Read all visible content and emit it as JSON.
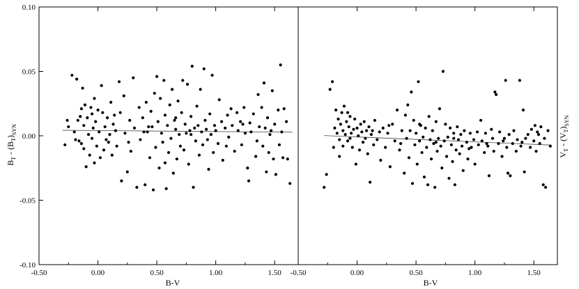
{
  "chart_data": [
    {
      "type": "scatter",
      "xlabel": "B-V",
      "ylabel": {
        "main": "B",
        "sub1": "T",
        "mid": " - (B",
        "sub2": "T",
        "close": ")",
        "sub3": "SYN"
      },
      "xlim": [
        -0.5,
        1.7
      ],
      "ylim": [
        -0.1,
        0.1
      ],
      "x_ticks": [
        "-0.50",
        "0.00",
        "0.50",
        "1.00",
        "1.50"
      ],
      "y_ticks": [
        "0.10",
        "0.05",
        "0.00",
        "-0.05",
        "-0.10"
      ],
      "trend": {
        "x": [
          -0.3,
          1.65
        ],
        "y": [
          0.0043,
          0.0028
        ]
      },
      "points": [
        [
          -0.28,
          -0.007
        ],
        [
          -0.25,
          0.007
        ],
        [
          -0.22,
          0.047
        ],
        [
          -0.2,
          0.003
        ],
        [
          -0.18,
          0.044
        ],
        [
          -0.17,
          0.012
        ],
        [
          -0.16,
          -0.004
        ],
        [
          -0.15,
          0.015
        ],
        [
          -0.14,
          0.021
        ],
        [
          -0.13,
          0.037
        ],
        [
          -0.12,
          0.008
        ],
        [
          -0.12,
          -0.01
        ],
        [
          -0.11,
          0.024
        ],
        [
          -0.1,
          -0.024
        ],
        [
          -0.09,
          0.014
        ],
        [
          -0.08,
          0.001
        ],
        [
          -0.07,
          -0.015
        ],
        [
          -0.06,
          0.022
        ],
        [
          -0.05,
          0.017
        ],
        [
          -0.05,
          -0.002
        ],
        [
          -0.04,
          0.006
        ],
        [
          -0.03,
          0.029
        ],
        [
          -0.03,
          -0.021
        ],
        [
          -0.02,
          0.011
        ],
        [
          -0.01,
          -0.008
        ],
        [
          0.0,
          0.02
        ],
        [
          0.01,
          0.003
        ],
        [
          0.02,
          -0.017
        ],
        [
          0.03,
          0.039
        ],
        [
          0.04,
          0.018
        ],
        [
          0.05,
          -0.011
        ],
        [
          0.06,
          0.007
        ],
        [
          0.07,
          -0.003
        ],
        [
          0.08,
          0.014
        ],
        [
          0.09,
          -0.005
        ],
        [
          0.1,
          0.001
        ],
        [
          0.11,
          0.026
        ],
        [
          0.12,
          -0.015
        ],
        [
          0.13,
          0.009
        ],
        [
          0.15,
          0.004
        ],
        [
          0.16,
          -0.008
        ],
        [
          0.18,
          0.042
        ],
        [
          0.19,
          0.018
        ],
        [
          0.2,
          -0.035
        ],
        [
          0.22,
          0.031
        ],
        [
          0.23,
          0.002
        ],
        [
          0.25,
          -0.028
        ],
        [
          0.27,
          0.012
        ],
        [
          0.28,
          -0.012
        ],
        [
          0.3,
          0.045
        ],
        [
          0.31,
          0.006
        ],
        [
          0.33,
          -0.04
        ],
        [
          0.35,
          0.022
        ],
        [
          0.36,
          -0.003
        ],
        [
          0.38,
          0.014
        ],
        [
          0.4,
          -0.038
        ],
        [
          0.41,
          0.026
        ],
        [
          0.42,
          0.003
        ],
        [
          0.44,
          -0.017
        ],
        [
          0.45,
          0.019
        ],
        [
          0.46,
          0.007
        ],
        [
          0.47,
          -0.042
        ],
        [
          0.48,
          0.033
        ],
        [
          0.49,
          -0.009
        ],
        [
          0.5,
          0.046
        ],
        [
          0.51,
          0.011
        ],
        [
          0.52,
          -0.025
        ],
        [
          0.53,
          0.029
        ],
        [
          0.54,
          0.002
        ],
        [
          0.55,
          -0.005
        ],
        [
          0.56,
          0.043
        ],
        [
          0.57,
          0.016
        ],
        [
          0.58,
          -0.041
        ],
        [
          0.59,
          0.008
        ],
        [
          0.6,
          -0.013
        ],
        [
          0.61,
          0.024
        ],
        [
          0.62,
          -0.002
        ],
        [
          0.63,
          0.036
        ],
        [
          0.64,
          -0.029
        ],
        [
          0.65,
          0.012
        ],
        [
          0.66,
          0.005
        ],
        [
          0.67,
          -0.018
        ],
        [
          0.68,
          0.027
        ],
        [
          0.69,
          0.001
        ],
        [
          0.7,
          -0.008
        ],
        [
          0.71,
          0.018
        ],
        [
          0.72,
          0.043
        ],
        [
          0.73,
          -0.011
        ],
        [
          0.74,
          0.009
        ],
        [
          0.75,
          0.002
        ],
        [
          0.76,
          0.04
        ],
        [
          0.77,
          -0.022
        ],
        [
          0.78,
          0.004
        ],
        [
          0.79,
          0.015
        ],
        [
          0.8,
          0.054
        ],
        [
          0.81,
          -0.04
        ],
        [
          0.82,
          0.006
        ],
        [
          0.83,
          -0.004
        ],
        [
          0.84,
          0.023
        ],
        [
          0.85,
          0.008
        ],
        [
          0.86,
          -0.015
        ],
        [
          0.87,
          0.036
        ],
        [
          0.88,
          0.003
        ],
        [
          0.89,
          -0.007
        ],
        [
          0.9,
          0.052
        ],
        [
          0.91,
          0.012
        ],
        [
          0.92,
          0.005
        ],
        [
          0.94,
          -0.026
        ],
        [
          0.95,
          0.017
        ],
        [
          0.96,
          0.001
        ],
        [
          0.97,
          0.047
        ],
        [
          0.98,
          -0.013
        ],
        [
          0.99,
          0.008
        ],
        [
          1.0,
          0.004
        ],
        [
          1.02,
          -0.006
        ],
        [
          1.03,
          0.028
        ],
        [
          1.05,
          0.011
        ],
        [
          1.06,
          -0.019
        ],
        [
          1.08,
          0.006
        ],
        [
          1.1,
          0.016
        ],
        [
          1.11,
          -0.001
        ],
        [
          1.13,
          0.021
        ],
        [
          1.14,
          0.008
        ],
        [
          1.16,
          -0.012
        ],
        [
          1.18,
          0.018
        ],
        [
          1.19,
          0.004
        ],
        [
          1.21,
          0.011
        ],
        [
          1.22,
          -0.007
        ],
        [
          1.24,
          0.022
        ],
        [
          1.25,
          0.002
        ],
        [
          1.27,
          -0.025
        ],
        [
          1.28,
          -0.035
        ],
        [
          1.29,
          0.01
        ],
        [
          1.3,
          0.003
        ],
        [
          1.32,
          0.017
        ],
        [
          1.34,
          -0.016
        ],
        [
          1.36,
          0.032
        ],
        [
          1.37,
          0.007
        ],
        [
          1.39,
          0.022
        ],
        [
          1.4,
          -0.008
        ],
        [
          1.41,
          0.041
        ],
        [
          1.42,
          0.006
        ],
        [
          1.43,
          -0.028
        ],
        [
          1.44,
          0.014
        ],
        [
          1.45,
          -0.013
        ],
        [
          1.46,
          0.001
        ],
        [
          1.48,
          0.035
        ],
        [
          1.49,
          -0.018
        ],
        [
          1.5,
          0.009
        ],
        [
          1.51,
          -0.03
        ],
        [
          1.53,
          0.02
        ],
        [
          1.54,
          -0.007
        ],
        [
          1.55,
          0.055
        ],
        [
          1.56,
          0.003
        ],
        [
          1.57,
          -0.017
        ],
        [
          1.58,
          0.021
        ],
        [
          1.6,
          0.011
        ],
        [
          1.61,
          -0.018
        ],
        [
          1.63,
          -0.037
        ],
        [
          -0.26,
          0.012
        ],
        [
          -0.19,
          -0.003
        ],
        [
          -0.14,
          -0.006
        ],
        [
          0.14,
          0.016
        ],
        [
          0.26,
          -0.005
        ],
        [
          0.39,
          0.003
        ],
        [
          0.43,
          0.007
        ],
        [
          0.57,
          -0.021
        ],
        [
          0.66,
          0.014
        ],
        [
          0.79,
          0.001
        ],
        [
          0.93,
          -0.003
        ],
        [
          1.09,
          -0.008
        ],
        [
          1.23,
          0.009
        ],
        [
          1.35,
          -0.004
        ],
        [
          1.47,
          0.004
        ]
      ]
    },
    {
      "type": "scatter",
      "xlabel": "B-V",
      "ylabel": {
        "main": "V",
        "sub1": "T",
        "mid": " - (V",
        "sub2": "T",
        "close": ")",
        "sub3": "SYN"
      },
      "xlim": [
        -0.5,
        1.7
      ],
      "ylim": [
        -0.1,
        0.1
      ],
      "x_ticks": [
        "-0.50",
        "0.00",
        "0.50",
        "1.00",
        "1.50"
      ],
      "trend": {
        "x": [
          -0.28,
          1.65
        ],
        "y": [
          0.0002,
          -0.0072
        ]
      },
      "points": [
        [
          -0.28,
          -0.04
        ],
        [
          -0.26,
          -0.03
        ],
        [
          -0.23,
          0.036
        ],
        [
          -0.21,
          0.042
        ],
        [
          -0.2,
          -0.009
        ],
        [
          -0.19,
          0.006
        ],
        [
          -0.17,
          0.002
        ],
        [
          -0.16,
          0.013
        ],
        [
          -0.15,
          -0.003
        ],
        [
          -0.14,
          0.009
        ],
        [
          -0.13,
          0.018
        ],
        [
          -0.12,
          0.004
        ],
        [
          -0.12,
          -0.008
        ],
        [
          -0.11,
          0.023
        ],
        [
          -0.1,
          0.001
        ],
        [
          -0.09,
          0.011
        ],
        [
          -0.08,
          0.018
        ],
        [
          -0.08,
          -0.004
        ],
        [
          -0.07,
          0.007
        ],
        [
          -0.06,
          0.015
        ],
        [
          -0.05,
          0.002
        ],
        [
          -0.04,
          -0.009
        ],
        [
          -0.03,
          0.005
        ],
        [
          -0.02,
          0.013
        ],
        [
          -0.01,
          -0.022
        ],
        [
          0.0,
          0.006
        ],
        [
          0.01,
          0.0
        ],
        [
          0.02,
          -0.011
        ],
        [
          0.03,
          0.009
        ],
        [
          0.04,
          0.003
        ],
        [
          0.05,
          -0.005
        ],
        [
          0.06,
          0.011
        ],
        [
          0.07,
          -0.002
        ],
        [
          0.08,
          0.004
        ],
        [
          0.09,
          -0.014
        ],
        [
          0.1,
          0.007
        ],
        [
          0.11,
          -0.036
        ],
        [
          0.12,
          0.001
        ],
        [
          0.14,
          -0.007
        ],
        [
          0.15,
          0.012
        ],
        [
          0.17,
          -0.003
        ],
        [
          0.19,
          0.003
        ],
        [
          0.2,
          -0.019
        ],
        [
          0.22,
          0.006
        ],
        [
          0.24,
          -0.009
        ],
        [
          0.26,
          0.002
        ],
        [
          0.28,
          -0.024
        ],
        [
          0.3,
          0.009
        ],
        [
          0.32,
          -0.004
        ],
        [
          0.34,
          0.02
        ],
        [
          0.36,
          -0.011
        ],
        [
          0.38,
          0.004
        ],
        [
          0.4,
          -0.029
        ],
        [
          0.41,
          0.016
        ],
        [
          0.42,
          -0.002
        ],
        [
          0.43,
          0.024
        ],
        [
          0.44,
          -0.017
        ],
        [
          0.45,
          0.004
        ],
        [
          0.46,
          0.034
        ],
        [
          0.47,
          -0.037
        ],
        [
          0.48,
          0.012
        ],
        [
          0.49,
          -0.007
        ],
        [
          0.5,
          0.002
        ],
        [
          0.51,
          -0.022
        ],
        [
          0.52,
          0.042
        ],
        [
          0.53,
          -0.004
        ],
        [
          0.54,
          0.008
        ],
        [
          0.55,
          -0.013
        ],
        [
          0.56,
          -0.001
        ],
        [
          0.57,
          -0.032
        ],
        [
          0.58,
          0.006
        ],
        [
          0.59,
          -0.009
        ],
        [
          0.6,
          -0.038
        ],
        [
          0.61,
          0.015
        ],
        [
          0.62,
          -0.003
        ],
        [
          0.63,
          -0.018
        ],
        [
          0.64,
          0.004
        ],
        [
          0.65,
          -0.006
        ],
        [
          0.66,
          -0.04
        ],
        [
          0.67,
          0.011
        ],
        [
          0.68,
          -0.012
        ],
        [
          0.69,
          -0.002
        ],
        [
          0.7,
          0.021
        ],
        [
          0.71,
          -0.008
        ],
        [
          0.72,
          -0.025
        ],
        [
          0.73,
          0.05
        ],
        [
          0.74,
          -0.004
        ],
        [
          0.75,
          0.009
        ],
        [
          0.76,
          -0.016
        ],
        [
          0.77,
          -0.001
        ],
        [
          0.78,
          -0.033
        ],
        [
          0.79,
          0.006
        ],
        [
          0.8,
          -0.007
        ],
        [
          0.81,
          -0.02
        ],
        [
          0.82,
          0.002
        ],
        [
          0.83,
          -0.038
        ],
        [
          0.84,
          -0.011
        ],
        [
          0.85,
          0.007
        ],
        [
          0.86,
          -0.003
        ],
        [
          0.87,
          -0.014
        ],
        [
          0.88,
          0.001
        ],
        [
          0.89,
          -0.008
        ],
        [
          0.9,
          -0.027
        ],
        [
          0.91,
          0.004
        ],
        [
          0.93,
          -0.005
        ],
        [
          0.94,
          -0.018
        ],
        [
          0.96,
          0.002
        ],
        [
          0.97,
          -0.009
        ],
        [
          0.99,
          -0.003
        ],
        [
          1.0,
          -0.022
        ],
        [
          1.02,
          0.003
        ],
        [
          1.03,
          -0.007
        ],
        [
          1.05,
          0.012
        ],
        [
          1.06,
          -0.004
        ],
        [
          1.08,
          -0.013
        ],
        [
          1.09,
          0.002
        ],
        [
          1.11,
          -0.008
        ],
        [
          1.12,
          -0.031
        ],
        [
          1.14,
          0.005
        ],
        [
          1.15,
          -0.002
        ],
        [
          1.16,
          -0.012
        ],
        [
          1.17,
          0.034
        ],
        [
          1.18,
          0.032
        ],
        [
          1.2,
          -0.006
        ],
        [
          1.21,
          0.003
        ],
        [
          1.23,
          -0.016
        ],
        [
          1.24,
          -0.004
        ],
        [
          1.26,
          0.043
        ],
        [
          1.27,
          -0.009
        ],
        [
          1.28,
          -0.029
        ],
        [
          1.29,
          0.001
        ],
        [
          1.3,
          -0.031
        ],
        [
          1.32,
          -0.006
        ],
        [
          1.33,
          0.004
        ],
        [
          1.35,
          -0.012
        ],
        [
          1.36,
          -0.003
        ],
        [
          1.38,
          0.043
        ],
        [
          1.39,
          -0.008
        ],
        [
          1.41,
          0.02
        ],
        [
          1.42,
          -0.028
        ],
        [
          1.43,
          -0.002
        ],
        [
          1.45,
          0.001
        ],
        [
          1.47,
          -0.009
        ],
        [
          1.48,
          0.005
        ],
        [
          1.5,
          -0.004
        ],
        [
          1.51,
          0.008
        ],
        [
          1.52,
          -0.012
        ],
        [
          1.53,
          0.003
        ],
        [
          1.55,
          -0.006
        ],
        [
          1.56,
          0.007
        ],
        [
          1.58,
          -0.038
        ],
        [
          1.59,
          -0.002
        ],
        [
          1.6,
          -0.04
        ],
        [
          1.62,
          0.004
        ],
        [
          1.64,
          -0.008
        ],
        [
          -0.18,
          0.02
        ],
        [
          -0.15,
          -0.016
        ],
        [
          -0.06,
          -0.002
        ],
        [
          0.13,
          0.004
        ],
        [
          0.27,
          0.008
        ],
        [
          0.37,
          -0.006
        ],
        [
          0.53,
          0.009
        ],
        [
          0.67,
          -0.005
        ],
        [
          0.82,
          -0.002
        ],
        [
          0.95,
          -0.01
        ],
        [
          1.1,
          -0.006
        ],
        [
          1.25,
          -0.002
        ],
        [
          1.4,
          -0.005
        ],
        [
          1.54,
          0.001
        ]
      ]
    }
  ]
}
